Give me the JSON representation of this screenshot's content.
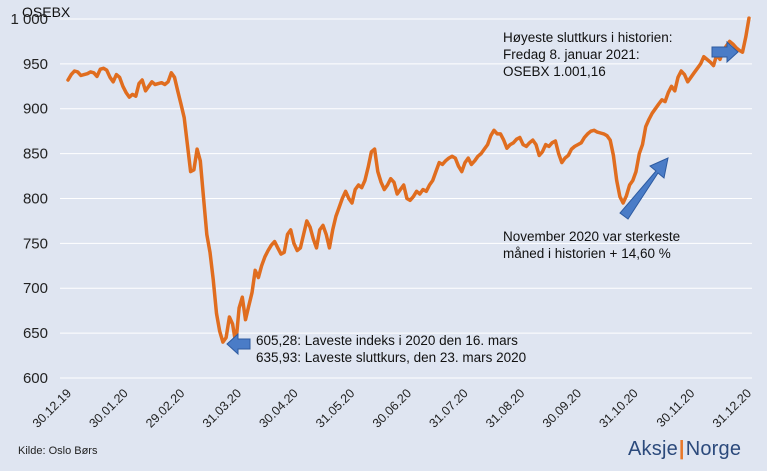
{
  "chart_data": {
    "type": "line",
    "title": "OSEBX",
    "ylim": [
      600,
      1010
    ],
    "yticks": [
      "600",
      "650",
      "700",
      "750",
      "800",
      "850",
      "900",
      "950",
      "1 000"
    ],
    "ytick_values": [
      600,
      650,
      700,
      750,
      800,
      850,
      900,
      950,
      1000
    ],
    "xticks": [
      "30.12.19",
      "30.01.20",
      "29.02.20",
      "31.03.20",
      "30.04.20",
      "31.05.20",
      "30.06.20",
      "31.07.20",
      "31.08.20",
      "30.09.20",
      "31.10.20",
      "30.11.20",
      "31.12.20"
    ],
    "grid": "horizontal",
    "line_color": "#e06d1f",
    "arrow_color": "#4a7cc7",
    "series": [
      {
        "values": [
          932,
          938,
          942,
          941,
          937,
          938,
          939,
          941,
          940,
          936,
          944,
          945,
          943,
          935,
          930,
          938,
          935,
          925,
          918,
          913,
          916,
          914,
          928,
          932,
          920,
          925,
          930,
          927,
          928,
          929,
          927,
          930,
          940,
          935,
          920,
          905,
          890,
          860,
          830,
          832,
          855,
          842,
          800,
          760,
          740,
          710,
          672,
          652,
          640,
          645,
          668,
          660,
          638,
          678,
          690,
          665,
          680,
          695,
          720,
          712,
          725,
          735,
          742,
          748,
          752,
          745,
          738,
          740,
          760,
          765,
          750,
          742,
          745,
          760,
          775,
          768,
          755,
          745,
          765,
          770,
          760,
          745,
          765,
          780,
          790,
          800,
          808,
          800,
          795,
          810,
          815,
          812,
          820,
          835,
          852,
          855,
          830,
          818,
          810,
          815,
          822,
          818,
          805,
          810,
          815,
          800,
          798,
          802,
          808,
          805,
          810,
          808,
          815,
          820,
          830,
          840,
          838,
          842,
          845,
          847,
          845,
          836,
          830,
          840,
          845,
          838,
          842,
          847,
          850,
          855,
          860,
          870,
          876,
          872,
          872,
          865,
          856,
          860,
          862,
          866,
          868,
          860,
          858,
          862,
          865,
          860,
          848,
          852,
          860,
          858,
          862,
          864,
          850,
          840,
          845,
          848,
          855,
          858,
          860,
          862,
          868,
          872,
          875,
          876,
          874,
          873,
          872,
          870,
          865,
          848,
          820,
          802,
          795,
          803,
          815,
          820,
          830,
          850,
          860,
          880,
          888,
          895,
          900,
          905,
          910,
          908,
          918,
          925,
          920,
          935,
          942,
          938,
          930,
          935,
          940,
          945,
          950,
          958,
          955,
          952,
          948,
          960,
          955,
          965,
          970,
          975,
          972,
          968,
          965,
          963,
          980,
          1001
        ]
      }
    ],
    "annotations": {
      "top_line1": "Høyeste sluttkurs i historien:",
      "top_line2": "Fredag 8. januar 2021:",
      "top_line3": "OSEBX 1.001,16",
      "nov_line1": "November 2020 var sterkeste",
      "nov_line2": "måned i historien + 14,60 %",
      "low_line1": "605,28: Laveste indeks i 2020 den 16. mars",
      "low_line2": "635,93: Laveste sluttkurs, den 23. mars 2020"
    }
  },
  "footer": {
    "source": "Kilde: Oslo Børs",
    "logo_left": "Aksje",
    "logo_sep": "|",
    "logo_right": "Norge"
  }
}
